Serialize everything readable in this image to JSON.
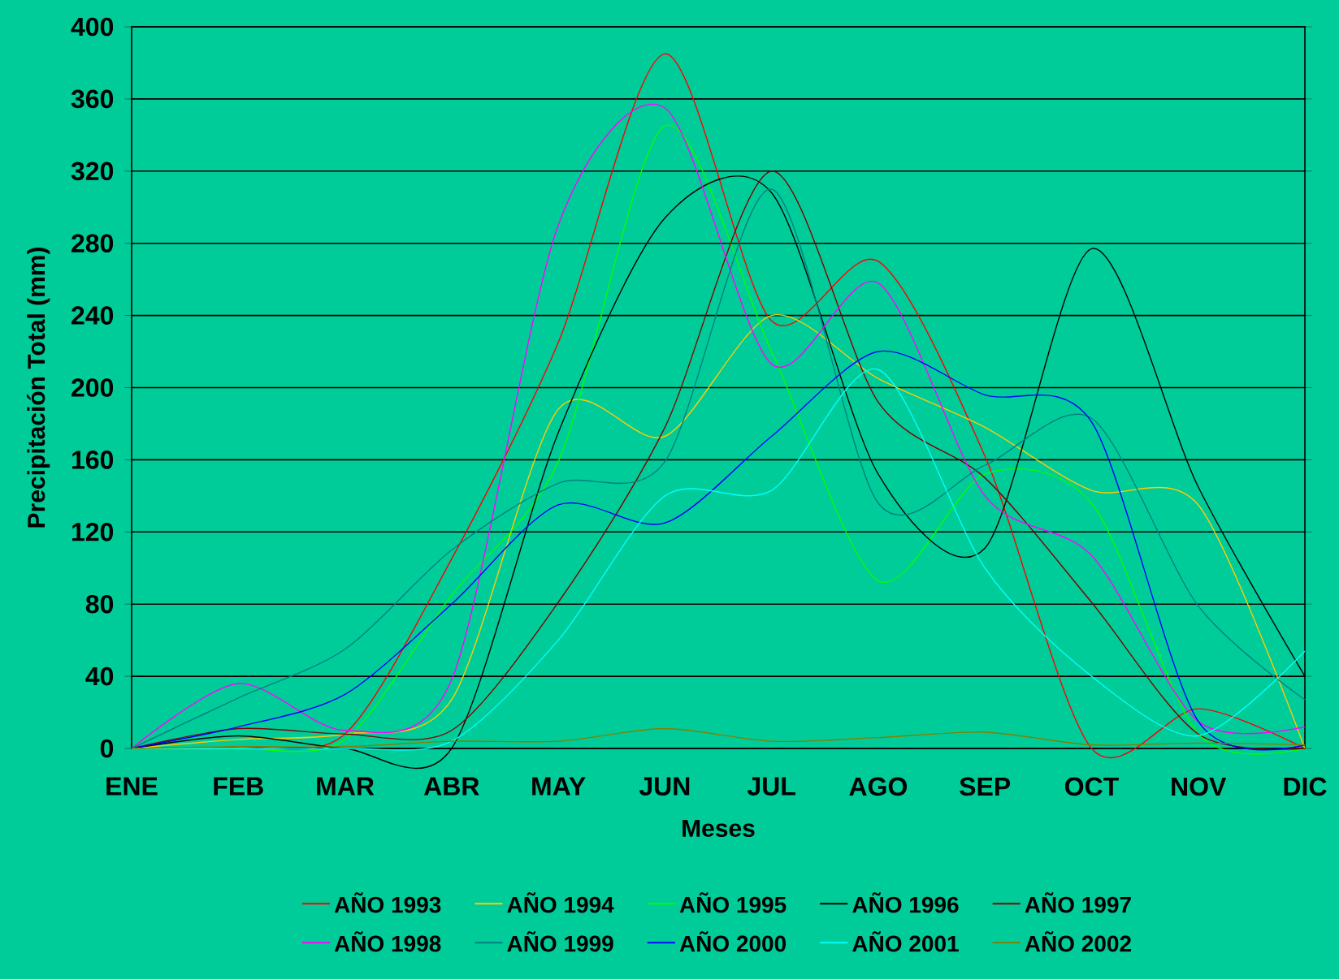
{
  "chart_data": {
    "type": "line",
    "xlabel": "Meses",
    "ylabel": "Precipitación Total (mm)",
    "categories": [
      "ENE",
      "FEB",
      "MAR",
      "ABR",
      "MAY",
      "JUN",
      "JUL",
      "AGO",
      "SEP",
      "OCT",
      "NOV",
      "DIC"
    ],
    "series": [
      {
        "name": "AÑO 1993",
        "color": "#ff0000",
        "values": [
          0,
          1,
          8,
          105,
          225,
          385,
          237,
          270,
          162,
          0,
          22,
          0
        ]
      },
      {
        "name": "AÑO 1994",
        "color": "#ffcc00",
        "values": [
          0,
          5,
          8,
          27,
          188,
          173,
          240,
          205,
          178,
          143,
          135,
          0
        ]
      },
      {
        "name": "AÑO 1995",
        "color": "#00ff00",
        "values": [
          0,
          0,
          5,
          85,
          159,
          345,
          220,
          93,
          152,
          136,
          8,
          0
        ]
      },
      {
        "name": "AÑO 1996",
        "color": "#000000",
        "values": [
          0,
          7,
          0,
          0,
          175,
          294,
          308,
          152,
          111,
          277,
          145,
          40
        ]
      },
      {
        "name": "AÑO 1997",
        "color": "#800000",
        "values": [
          0,
          11,
          8,
          10,
          81,
          178,
          320,
          192,
          150,
          81,
          8,
          0
        ]
      },
      {
        "name": "AÑO 1998",
        "color": "#ff00ff",
        "values": [
          0,
          36,
          10,
          38,
          290,
          355,
          213,
          258,
          140,
          107,
          15,
          12
        ]
      },
      {
        "name": "AÑO 1999",
        "color": "#008080",
        "values": [
          0,
          28,
          55,
          110,
          147,
          159,
          310,
          136,
          157,
          183,
          79,
          27
        ]
      },
      {
        "name": "AÑO 2000",
        "color": "#0000ff",
        "values": [
          0,
          12,
          30,
          80,
          135,
          125,
          173,
          220,
          196,
          181,
          15,
          2
        ]
      },
      {
        "name": "AÑO 2001",
        "color": "#00ffff",
        "values": [
          0,
          0,
          0,
          4,
          60,
          140,
          143,
          210,
          100,
          40,
          7,
          54
        ]
      },
      {
        "name": "AÑO 2002",
        "color": "#808000",
        "values": [
          0,
          1,
          1,
          4,
          4,
          11,
          4,
          6,
          9,
          2,
          3,
          2
        ]
      }
    ],
    "ylim": [
      0,
      400
    ],
    "yticks": [
      0,
      40,
      80,
      120,
      160,
      200,
      240,
      280,
      320,
      360,
      400
    ],
    "grid": "y",
    "legend": "bottom",
    "marker": "none"
  }
}
